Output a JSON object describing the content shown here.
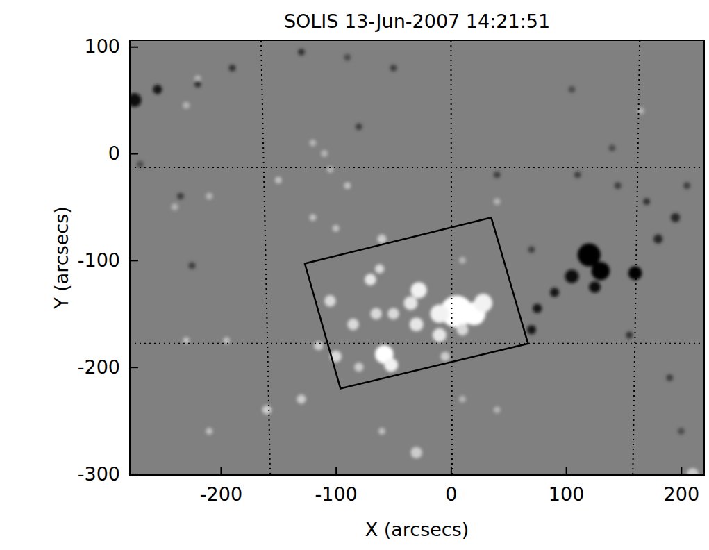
{
  "chart_data": {
    "type": "image",
    "title": "SOLIS 13-Jun-2007 14:21:51",
    "x_label": "X (arcsecs)",
    "y_label": "Y (arcsecs)",
    "xlim": [
      -279,
      220
    ],
    "ylim": [
      -301,
      106
    ],
    "xticks": [
      -200,
      -100,
      0,
      100,
      200
    ],
    "yticks": [
      -300,
      -200,
      -100,
      0,
      100
    ],
    "zlim": [
      -1,
      1
    ],
    "features": {
      "x": [
        5,
        20,
        28,
        -10,
        -28,
        -35,
        -50,
        -65,
        -85,
        -70,
        -62,
        -105,
        -58,
        -52,
        -100,
        -30,
        -10,
        -5,
        10,
        -115,
        -80,
        -120,
        -150,
        -100,
        -130,
        -160,
        -210,
        -30,
        -60,
        -195,
        -230,
        -90,
        -120,
        -210,
        -240,
        -220,
        -230,
        -110,
        -105,
        165,
        210,
        10,
        40,
        -60,
        10,
        40,
        120,
        130,
        105,
        160,
        125,
        90,
        75,
        70,
        155,
        180,
        195,
        170,
        -275,
        -255,
        -220,
        -190,
        -130,
        -50,
        -80,
        -235,
        -225,
        40,
        110,
        70,
        145,
        140,
        205,
        190,
        105,
        200,
        -90,
        -270
      ],
      "y": [
        -148,
        -150,
        -140,
        -150,
        -128,
        -140,
        -150,
        -150,
        -160,
        -118,
        -108,
        -138,
        -188,
        -198,
        -190,
        -160,
        -170,
        -190,
        -165,
        -180,
        -200,
        -60,
        -25,
        -70,
        -230,
        -240,
        -260,
        -280,
        -260,
        -175,
        -175,
        -30,
        10,
        -40,
        -50,
        70,
        45,
        0,
        -15,
        40,
        -300,
        -230,
        -240,
        -80,
        -100,
        -45,
        -95,
        -110,
        -115,
        -112,
        -125,
        -130,
        -145,
        -165,
        -170,
        -80,
        -60,
        -45,
        50,
        60,
        65,
        80,
        95,
        80,
        25,
        -40,
        -105,
        -20,
        -20,
        -90,
        -30,
        5,
        -30,
        -210,
        60,
        -260,
        90,
        -10
      ],
      "size": [
        14,
        10,
        8,
        8,
        7,
        6,
        5,
        5,
        5,
        5,
        4,
        5,
        8,
        6,
        5,
        6,
        6,
        4,
        5,
        4,
        4,
        3,
        3,
        3,
        4,
        4,
        3,
        5,
        3,
        3,
        3,
        3,
        3,
        3,
        3,
        3,
        3,
        3,
        3,
        3,
        5,
        3,
        3,
        4,
        3,
        3,
        10,
        8,
        6,
        6,
        5,
        4,
        4,
        4,
        3,
        4,
        4,
        3,
        6,
        4,
        3,
        3,
        3,
        3,
        3,
        3,
        3,
        3,
        3,
        3,
        3,
        3,
        3,
        3,
        3,
        3,
        3,
        3
      ],
      "values": [
        1,
        1,
        0.9,
        0.9,
        0.9,
        0.8,
        0.7,
        0.7,
        0.7,
        0.8,
        0.7,
        0.7,
        1,
        0.9,
        0.7,
        0.8,
        0.8,
        0.6,
        0.7,
        0.6,
        0.6,
        0.5,
        0.5,
        0.5,
        0.6,
        0.6,
        0.5,
        0.6,
        0.5,
        0.5,
        0.5,
        0.5,
        0.4,
        0.4,
        0.4,
        0.4,
        0.4,
        0.4,
        0.4,
        0.4,
        0.6,
        0.4,
        0.4,
        0.6,
        0.4,
        0.4,
        -1,
        -1,
        -0.9,
        -1,
        -0.9,
        -0.8,
        -0.8,
        -0.8,
        -0.6,
        -0.7,
        -0.7,
        -0.6,
        -0.9,
        -0.8,
        -0.6,
        -0.6,
        -0.6,
        -0.5,
        -0.5,
        -0.5,
        -0.5,
        -0.5,
        -0.5,
        -0.5,
        -0.5,
        -0.4,
        -0.5,
        -0.5,
        -0.4,
        -0.4,
        -0.4,
        -0.4
      ]
    },
    "box": {
      "x": [
        -127,
        35,
        67,
        -96
      ],
      "y": [
        -103,
        -60,
        -178,
        -220
      ]
    },
    "grid": true,
    "grid_lines": [
      {
        "x": [
          -165,
          -157
        ],
        "y": [
          106,
          -301
        ]
      },
      {
        "x": [
          0,
          1
        ],
        "y": [
          106,
          -301
        ]
      },
      {
        "x": [
          164,
          158
        ],
        "y": [
          106,
          -301
        ]
      },
      {
        "x": [
          -279,
          220
        ],
        "y": [
          -13,
          -13
        ]
      },
      {
        "x": [
          -279,
          220
        ],
        "y": [
          -178,
          -178
        ]
      }
    ]
  }
}
